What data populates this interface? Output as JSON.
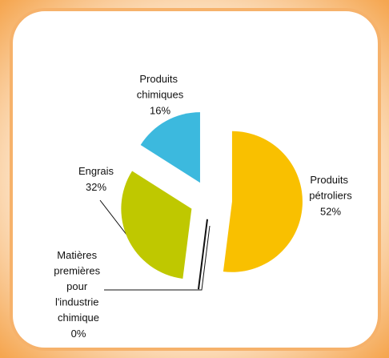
{
  "chart_data": {
    "type": "pie",
    "categories": [
      "Produits pétroliers",
      "Matières premières pour l'industrie chimique",
      "Engrais",
      "Produits chimiques"
    ],
    "values": [
      52,
      0,
      32,
      16
    ],
    "value_labels": [
      "52%",
      "0%",
      "32%",
      "16%"
    ],
    "colors": [
      "#f9c000",
      "#111111",
      "#bfc800",
      "#3cb9de"
    ]
  }
}
